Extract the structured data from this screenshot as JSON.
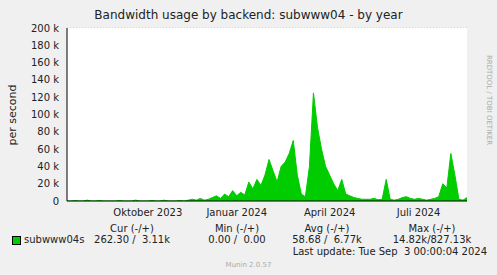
{
  "chart_data": {
    "type": "area",
    "title": "Bandwidth usage by backend: subwww04 - by year",
    "y_label": "per second",
    "watermark": "RRDTOOL / TOBI OETIKER",
    "categories": [
      null,
      null,
      null,
      null,
      null,
      null,
      null,
      null,
      null,
      null,
      null,
      null,
      null,
      null,
      null,
      null,
      null,
      null,
      null,
      null,
      "Oktober 2023",
      null,
      null,
      null,
      null,
      null,
      null,
      null,
      null,
      null,
      null,
      null,
      null,
      null,
      null,
      null,
      null,
      null,
      null,
      null,
      null,
      null,
      "Januar 2024",
      null,
      null,
      null,
      null,
      null,
      null,
      null,
      null,
      null,
      null,
      null,
      null,
      null,
      null,
      null,
      null,
      null,
      null,
      null,
      null,
      null,
      null,
      "April 2024",
      null,
      null,
      null,
      null,
      null,
      null,
      null,
      null,
      null,
      null,
      null,
      null,
      null,
      null,
      null,
      null,
      null,
      null,
      null,
      null,
      null,
      "Juli 2024",
      null,
      null,
      null,
      null,
      null,
      null,
      null,
      null,
      null,
      null,
      null,
      null
    ],
    "series": [
      {
        "name": "subwww04s",
        "color": "#00cc00",
        "values": [
          0,
          0,
          500,
          0,
          0,
          1000,
          0,
          0,
          500,
          0,
          0,
          0,
          0,
          500,
          0,
          0,
          0,
          1000,
          0,
          0,
          0,
          500,
          0,
          0,
          1000,
          0,
          0,
          0,
          500,
          0,
          1000,
          2000,
          1000,
          3000,
          1000,
          2000,
          4000,
          6000,
          3000,
          8000,
          5000,
          12000,
          6000,
          10000,
          7000,
          22000,
          14000,
          25000,
          18000,
          30000,
          48000,
          35000,
          22000,
          40000,
          45000,
          55000,
          70000,
          30000,
          8000,
          5000,
          40000,
          125000,
          85000,
          60000,
          40000,
          30000,
          20000,
          12000,
          25000,
          8000,
          6000,
          4000,
          3000,
          2000,
          2000,
          2000,
          3000,
          1500,
          2000,
          25000,
          2000,
          1000,
          2000,
          4000,
          5000,
          3000,
          2000,
          3000,
          2000,
          1000,
          2000,
          3000,
          5000,
          20000,
          15000,
          55000,
          30000,
          2000,
          1000,
          4000
        ]
      }
    ],
    "ylim": [
      0,
      200000
    ],
    "yticks": [
      0,
      {
        "value": 20000,
        "label": "20 k"
      },
      {
        "value": 40000,
        "label": "40 k"
      },
      {
        "value": 60000,
        "label": "60 k"
      },
      {
        "value": 80000,
        "label": "80 k"
      },
      {
        "value": 100000,
        "label": "100 k"
      },
      {
        "value": 120000,
        "label": "120 k"
      },
      {
        "value": 140000,
        "label": "140 k"
      },
      {
        "value": 160000,
        "label": "160 k"
      },
      {
        "value": 180000,
        "label": "180 k"
      },
      {
        "value": 200000,
        "label": "200 k"
      }
    ],
    "grid": true,
    "legend_columns": [
      "Cur (-/+)",
      "Min (-/+)",
      "Avg (-/+)",
      "Max (-/+)"
    ],
    "legend_values": [
      "262.30 /  3.11k",
      "0.00 /  0.00",
      "58.68 /  6.77k",
      "14.82k/827.13k"
    ],
    "last_update": "Last update: Tue Sep  3 00:00:04 2024",
    "footer": "Munin 2.0.57"
  }
}
